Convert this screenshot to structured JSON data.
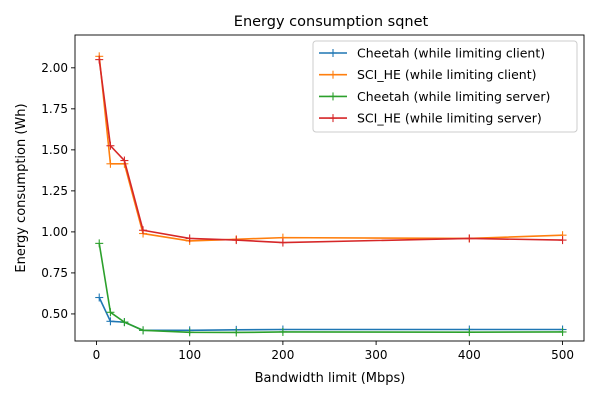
{
  "chart_data": {
    "type": "line",
    "title": "Energy consumption sqnet",
    "xlabel": "Bandwidth limit (Mbps)",
    "ylabel": "Energy consumption (Wh)",
    "xlim": [
      -23,
      523
    ],
    "ylim": [
      0.335,
      2.2
    ],
    "xticks": [
      0,
      100,
      200,
      300,
      400,
      500
    ],
    "xtick_labels": [
      "0",
      "100",
      "200",
      "300",
      "400",
      "500"
    ],
    "yticks": [
      0.5,
      0.75,
      1.0,
      1.25,
      1.5,
      1.75,
      2.0
    ],
    "ytick_labels": [
      "0.50",
      "0.75",
      "1.00",
      "1.25",
      "1.50",
      "1.75",
      "2.00"
    ],
    "grid": false,
    "legend_position": "top-right",
    "marker": "+",
    "x": [
      3,
      15,
      30,
      50,
      100,
      150,
      200,
      400,
      500
    ],
    "series": [
      {
        "name": "Cheetah (while limiting client)",
        "color": "#1f77b4",
        "values": [
          0.6,
          0.455,
          0.45,
          0.4,
          0.4,
          0.403,
          0.405,
          0.405,
          0.405
        ]
      },
      {
        "name": "SCI_HE (while limiting client)",
        "color": "#ff7f0e",
        "values": [
          2.07,
          1.415,
          1.415,
          0.99,
          0.945,
          0.955,
          0.965,
          0.96,
          0.98
        ]
      },
      {
        "name": "Cheetah (while limiting server)",
        "color": "#2ca02c",
        "values": [
          0.93,
          0.51,
          0.45,
          0.4,
          0.388,
          0.387,
          0.39,
          0.389,
          0.39
        ]
      },
      {
        "name": "SCI_HE (while limiting server)",
        "color": "#d62728",
        "values": [
          2.05,
          1.525,
          1.435,
          1.01,
          0.96,
          0.95,
          0.935,
          0.96,
          0.95
        ]
      }
    ]
  }
}
